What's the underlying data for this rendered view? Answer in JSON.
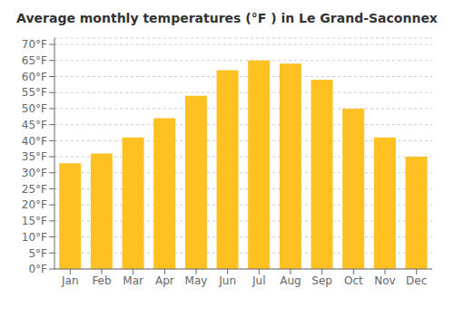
{
  "chart_data": {
    "type": "bar",
    "title": "Average monthly temperatures (°F ) in Le Grand-Saconnex",
    "categories": [
      "Jan",
      "Feb",
      "Mar",
      "Apr",
      "May",
      "Jun",
      "Jul",
      "Aug",
      "Sep",
      "Oct",
      "Nov",
      "Dec"
    ],
    "values": [
      33,
      36,
      41,
      47,
      54,
      62,
      65,
      64,
      59,
      50,
      41,
      35
    ],
    "color": "#FFC022",
    "ylim": [
      0,
      72
    ],
    "yticks": [
      {
        "value": 0,
        "label": "0°F"
      },
      {
        "value": 5,
        "label": "5°F"
      },
      {
        "value": 10,
        "label": "10°F"
      },
      {
        "value": 15,
        "label": "15°F"
      },
      {
        "value": 20,
        "label": "20°F"
      },
      {
        "value": 25,
        "label": "25°F"
      },
      {
        "value": 30,
        "label": "30°F"
      },
      {
        "value": 35,
        "label": "35°F"
      },
      {
        "value": 40,
        "label": "40°F"
      },
      {
        "value": 45,
        "label": "45°F"
      },
      {
        "value": 50,
        "label": "50°F"
      },
      {
        "value": 55,
        "label": "55°F"
      },
      {
        "value": 60,
        "label": "60°F"
      },
      {
        "value": 65,
        "label": "65°F"
      },
      {
        "value": 70,
        "label": "70°F"
      }
    ],
    "grid": true
  }
}
